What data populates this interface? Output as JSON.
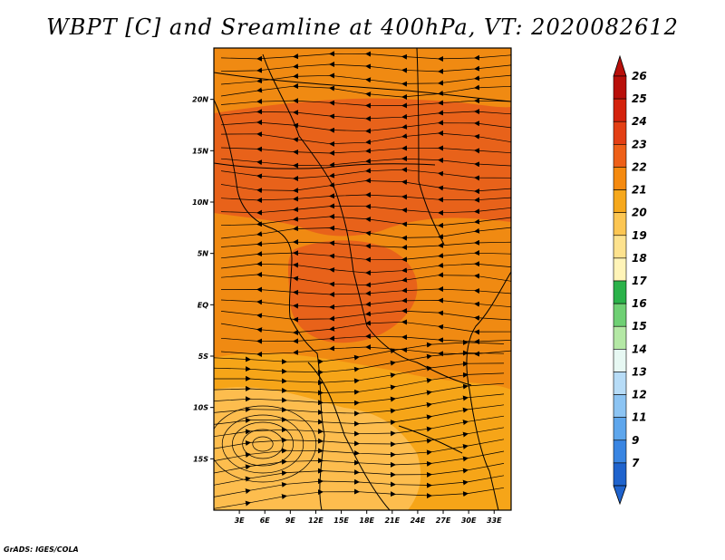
{
  "title": "WBPT [C] and Sreamline at 400hPa, VT: 2020082612",
  "credit": "GrADS: IGES/COLA",
  "map": {
    "lon_range": [
      0,
      35
    ],
    "lat_range": [
      -20,
      25
    ],
    "lon_ticks": [
      {
        "value": 3,
        "label": "3E"
      },
      {
        "value": 6,
        "label": "6E"
      },
      {
        "value": 9,
        "label": "9E"
      },
      {
        "value": 12,
        "label": "12E"
      },
      {
        "value": 15,
        "label": "15E"
      },
      {
        "value": 18,
        "label": "18E"
      },
      {
        "value": 21,
        "label": "21E"
      },
      {
        "value": 24,
        "label": "24E"
      },
      {
        "value": 27,
        "label": "27E"
      },
      {
        "value": 30,
        "label": "30E"
      },
      {
        "value": 33,
        "label": "33E"
      }
    ],
    "lat_ticks": [
      {
        "value": 20,
        "label": "20N"
      },
      {
        "value": 15,
        "label": "15N"
      },
      {
        "value": 10,
        "label": "10N"
      },
      {
        "value": 5,
        "label": "5N"
      },
      {
        "value": 0,
        "label": "EQ"
      },
      {
        "value": -5,
        "label": "5S"
      },
      {
        "value": -10,
        "label": "10S"
      },
      {
        "value": -15,
        "label": "15S"
      }
    ],
    "fill_colors": {
      "c20": "#fdbd4e",
      "c21": "#f6a518",
      "c22": "#f08a12",
      "c23": "#e8621a"
    },
    "features": [
      "coastline",
      "country-borders",
      "lakes",
      "streamlines"
    ]
  },
  "colorbar": {
    "labels": [
      "26",
      "25",
      "24",
      "23",
      "22",
      "21",
      "20",
      "19",
      "18",
      "17",
      "16",
      "15",
      "14",
      "13",
      "12",
      "11",
      "9",
      "7"
    ],
    "colors": [
      "#b80f0a",
      "#d4220c",
      "#e33f14",
      "#ee6018",
      "#f58a0f",
      "#f6a81c",
      "#fcc653",
      "#fde28e",
      "#fff4b8",
      "#2bb24a",
      "#6fd074",
      "#b4e8a5",
      "#e7f8f3",
      "#b7dcf7",
      "#8cc4f3",
      "#5ea6ec",
      "#3985e2",
      "#1f63cd"
    ]
  }
}
